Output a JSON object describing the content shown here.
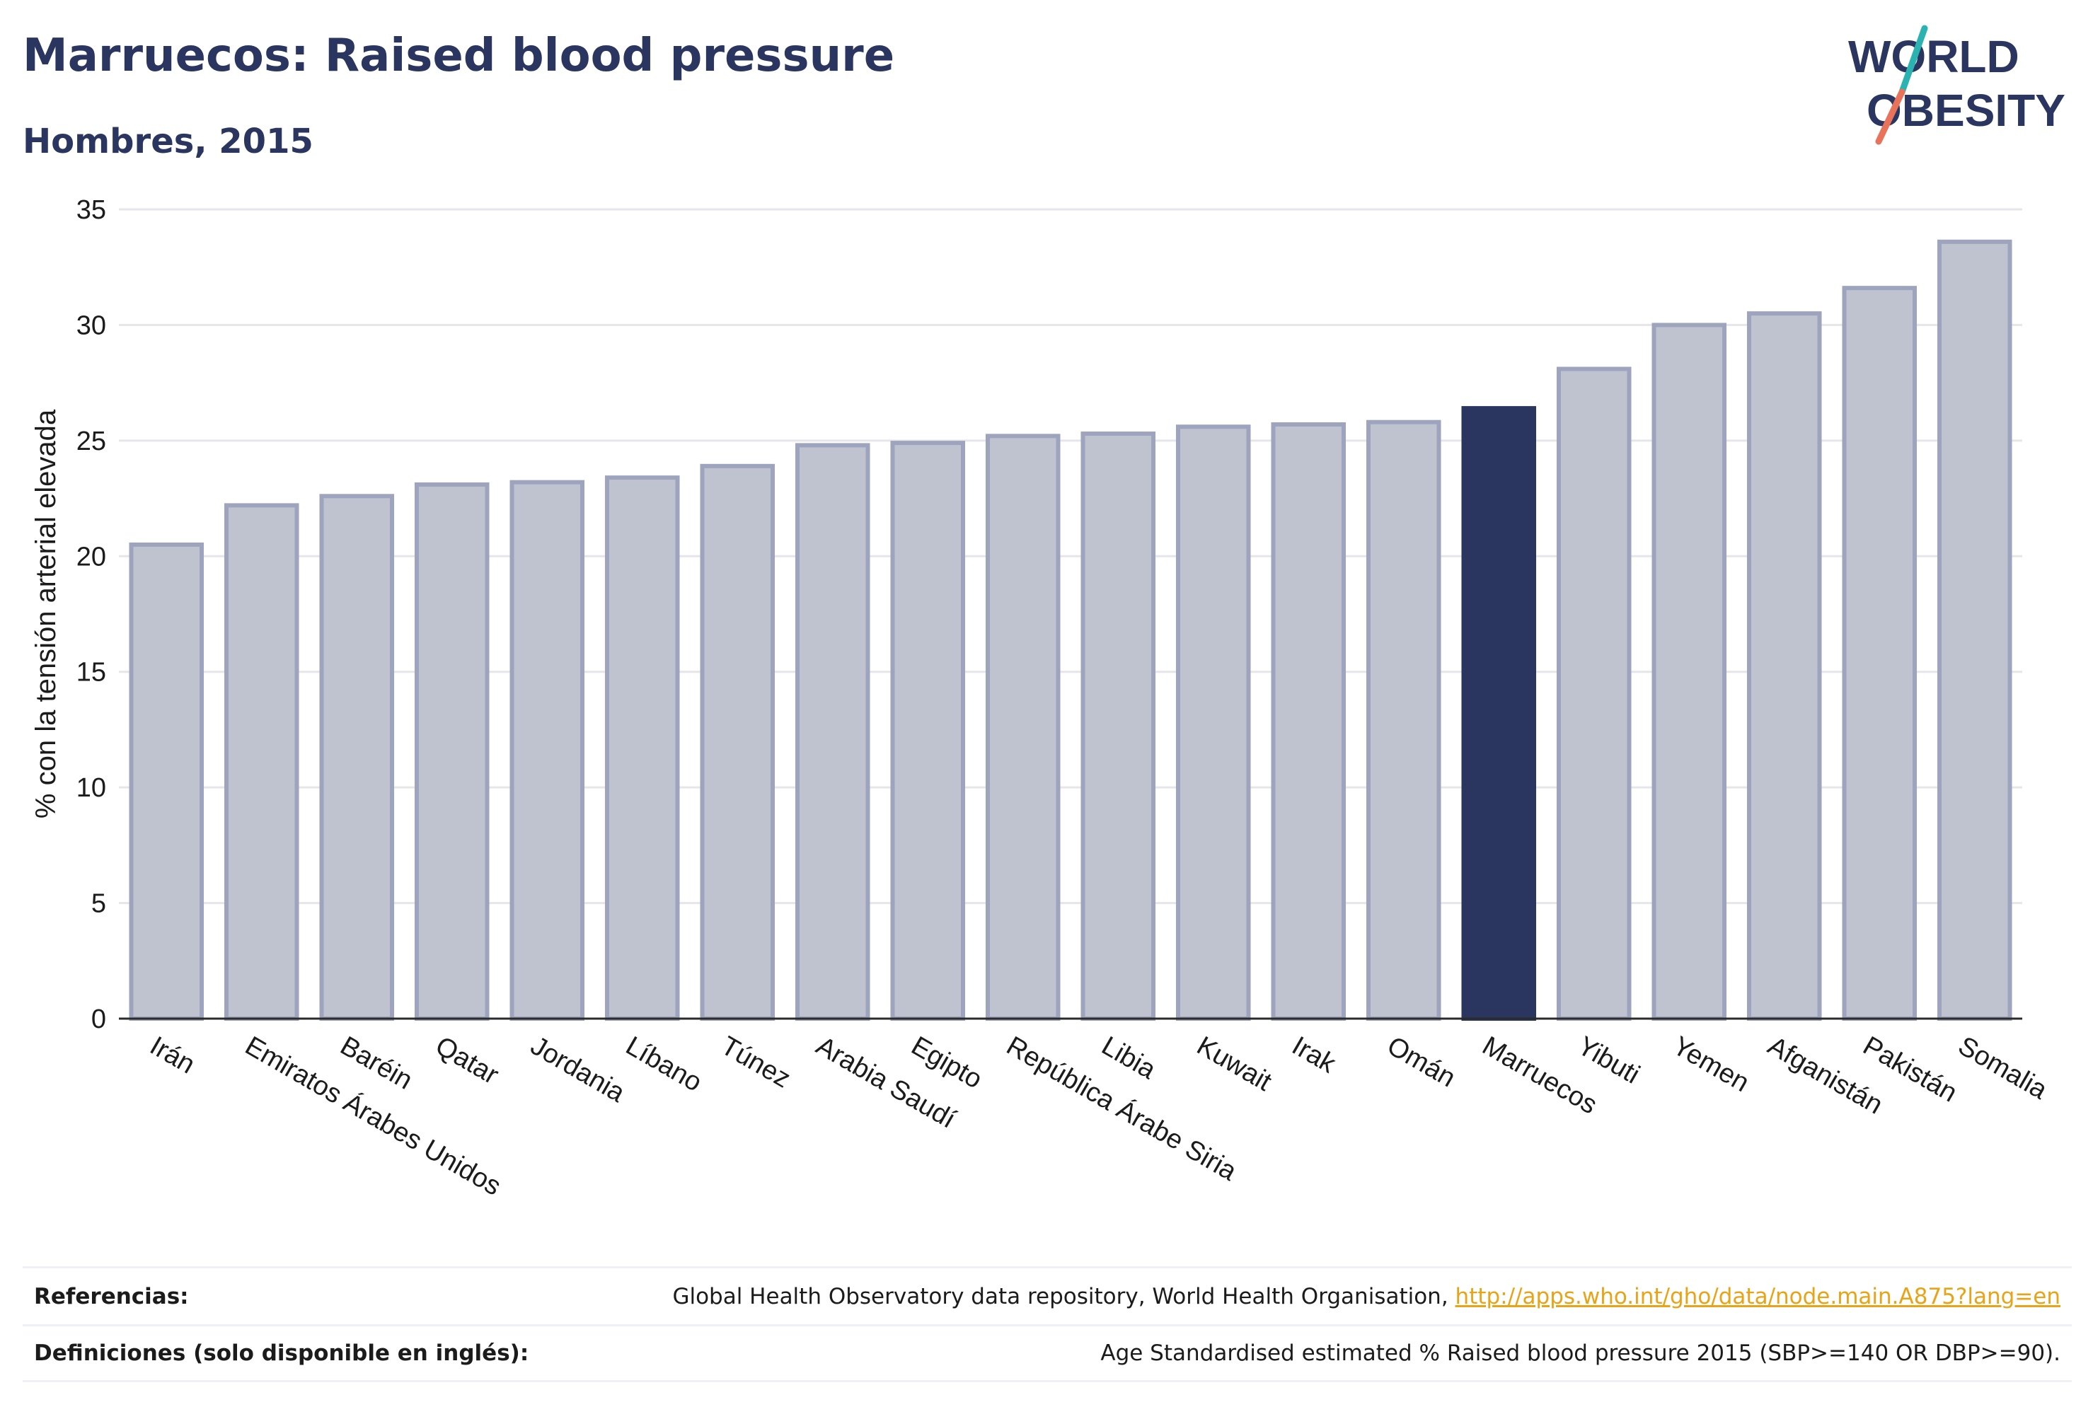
{
  "header": {
    "title": "Marruecos: Raised blood pressure",
    "subtitle": "Hombres, 2015"
  },
  "logo": {
    "line1": "WORLD",
    "line2": "OBESITY",
    "slash_color_top": "#2bb3b1",
    "slash_color_bottom": "#e8735a"
  },
  "colors": {
    "highlight": "#2a3560",
    "bar_fill": "#bfc3d0",
    "bar_stroke": "#9ea4bd",
    "text": "#2a3560"
  },
  "chart_data": {
    "type": "bar",
    "ylabel": "% con la tensión arterial elevada",
    "xlabel": "",
    "ylim": [
      0,
      35
    ],
    "yticks": [
      0,
      5,
      10,
      15,
      20,
      25,
      30,
      35
    ],
    "grid": true,
    "highlight": "Marruecos",
    "categories": [
      "Irán",
      "Emiratos Árabes Unidos",
      "Baréin",
      "Qatar",
      "Jordania",
      "Líbano",
      "Túnez",
      "Arabia Saudí",
      "Egipto",
      "República Árabe Siria",
      "Libia",
      "Kuwait",
      "Irak",
      "Omán",
      "Marruecos",
      "Yibuti",
      "Yemen",
      "Afganistán",
      "Pakistán",
      "Somalia"
    ],
    "values": [
      20.5,
      22.2,
      22.6,
      23.1,
      23.2,
      23.4,
      23.9,
      24.8,
      24.9,
      25.2,
      25.3,
      25.6,
      25.7,
      25.8,
      26.4,
      28.1,
      30.0,
      30.5,
      31.6,
      33.6
    ]
  },
  "footer": {
    "references_label": "Referencias:",
    "references_text": "Global Health Observatory data repository, World Health Organisation, ",
    "references_link": "http://apps.who.int/gho/data/node.main.A875?lang=en",
    "definitions_label": "Definiciones (solo disponible en inglés):",
    "definitions_text": "Age Standardised estimated % Raised blood pressure 2015 (SBP>=140 OR DBP>=90)."
  }
}
